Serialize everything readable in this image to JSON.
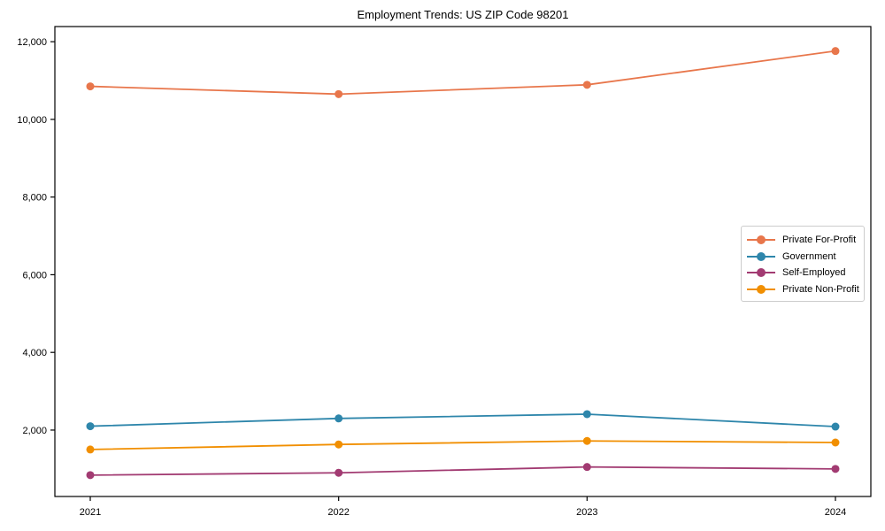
{
  "chart_data": {
    "type": "line",
    "title": "Employment Trends: US ZIP Code 98201",
    "xlabel": "",
    "ylabel": "",
    "categories": [
      "2021",
      "2022",
      "2023",
      "2024"
    ],
    "series": [
      {
        "name": "Private For-Profit",
        "color": "#E8764B",
        "values": [
          10850,
          10650,
          10890,
          11760
        ]
      },
      {
        "name": "Government",
        "color": "#2E86AB",
        "values": [
          2100,
          2300,
          2410,
          2090
        ]
      },
      {
        "name": "Self-Employed",
        "color": "#A23B72",
        "values": [
          840,
          900,
          1050,
          1000
        ]
      },
      {
        "name": "Private Non-Profit",
        "color": "#F18F01",
        "values": [
          1500,
          1630,
          1720,
          1680
        ]
      }
    ],
    "ylim": [
      290,
      12390
    ],
    "yticks": [
      2000,
      4000,
      6000,
      8000,
      10000,
      12000
    ],
    "ytick_labels": [
      "2,000",
      "4,000",
      "6,000",
      "8,000",
      "10,000",
      "12,000"
    ],
    "grid": "off",
    "legend_position": "center-right",
    "axis_color": "#000000"
  }
}
